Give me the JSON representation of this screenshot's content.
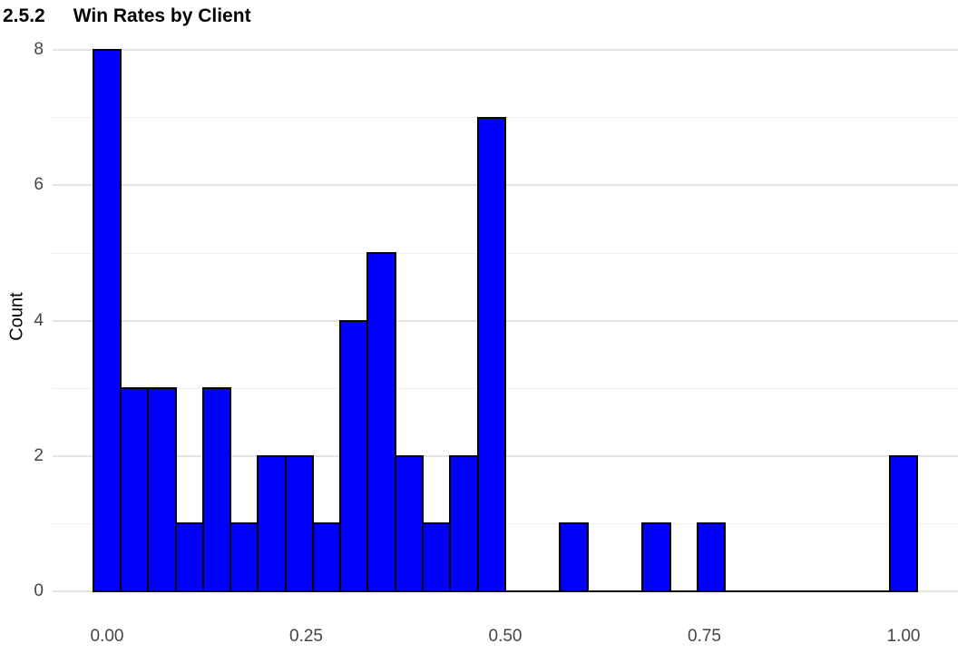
{
  "title": {
    "section_number": "2.5.2",
    "text": "Win Rates by Client"
  },
  "chart_data": {
    "type": "bar",
    "subtype": "histogram",
    "title": "2.5.2 Win Rates by Client",
    "xlabel": "",
    "ylabel": "Count",
    "xlim": [
      -0.05,
      1.07
    ],
    "ylim": [
      0,
      8
    ],
    "bin_width": 0.0345,
    "bin_centers": [
      0.0,
      0.0345,
      0.069,
      0.1034,
      0.1379,
      0.1724,
      0.2069,
      0.2414,
      0.2759,
      0.3103,
      0.3448,
      0.3793,
      0.4138,
      0.4483,
      0.4828,
      0.5172,
      0.5517,
      0.5862,
      0.6207,
      0.6552,
      0.6897,
      0.7241,
      0.7586,
      0.7931,
      0.8276,
      0.8621,
      0.8966,
      0.931,
      0.9655,
      1.0
    ],
    "values": [
      8,
      3,
      3,
      1,
      3,
      1,
      2,
      2,
      1,
      4,
      5,
      2,
      1,
      2,
      7,
      0,
      0,
      1,
      0,
      0,
      1,
      0,
      1,
      0,
      0,
      0,
      0,
      0,
      0,
      2
    ],
    "x_ticks": [
      {
        "label": "0.00",
        "value": 0.0
      },
      {
        "label": "0.25",
        "value": 0.25
      },
      {
        "label": "0.50",
        "value": 0.5
      },
      {
        "label": "0.75",
        "value": 0.75
      },
      {
        "label": "1.00",
        "value": 1.0
      }
    ],
    "y_ticks": [
      {
        "label": "0",
        "value": 0
      },
      {
        "label": "2",
        "value": 2
      },
      {
        "label": "4",
        "value": 4
      },
      {
        "label": "6",
        "value": 6
      },
      {
        "label": "8",
        "value": 8
      }
    ],
    "gridlines": {
      "major": [
        0,
        1,
        2,
        3,
        4,
        5,
        6,
        7,
        8
      ],
      "major_even": [
        0,
        2,
        4,
        6,
        8
      ],
      "minor_odd": [
        1,
        3,
        5,
        7
      ],
      "orientation": "horizontal-only"
    },
    "legend": "none",
    "colors": {
      "bar_fill": "#0000FF",
      "bar_border": "#000000",
      "gridline_major": "#E4E4E4",
      "gridline_minor": "#EFEFEF",
      "tick_label": "#454545",
      "axis_title": "#000000",
      "heading": "#000000",
      "background": "#FFFFFF"
    }
  }
}
